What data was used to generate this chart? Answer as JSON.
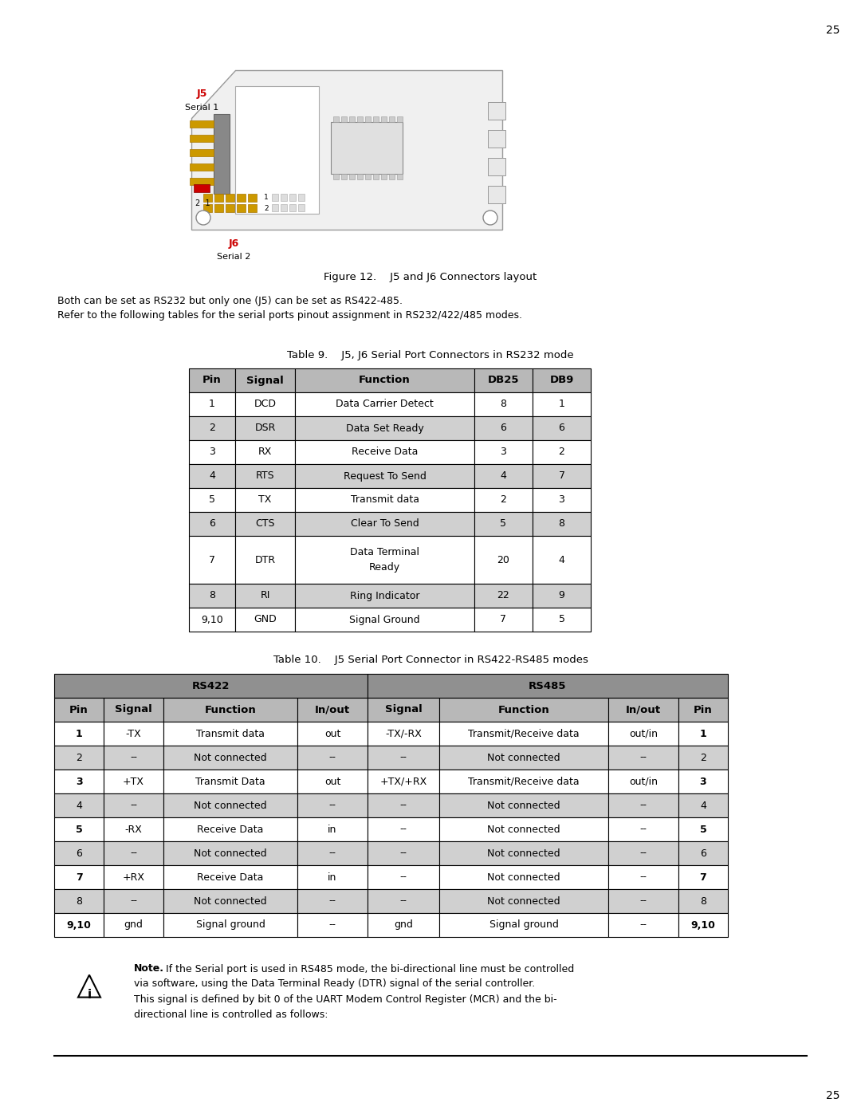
{
  "page_number": "25",
  "figure_caption": "Figure 12.    J5 and J6 Connectors layout",
  "body_text": [
    "Both can be set as RS232 but only one (J5) can be set as RS422-485.",
    "Refer to the following tables for the serial ports pinout assignment in RS232/422/485 modes."
  ],
  "table9_title": "Table 9.    J5, J6 Serial Port Connectors in RS232 mode",
  "table9_headers": [
    "Pin",
    "Signal",
    "Function",
    "DB25",
    "DB9"
  ],
  "table9_rows": [
    [
      "1",
      "DCD",
      "Data Carrier Detect",
      "8",
      "1"
    ],
    [
      "2",
      "DSR",
      "Data Set Ready",
      "6",
      "6"
    ],
    [
      "3",
      "RX",
      "Receive Data",
      "3",
      "2"
    ],
    [
      "4",
      "RTS",
      "Request To Send",
      "4",
      "7"
    ],
    [
      "5",
      "TX",
      "Transmit data",
      "2",
      "3"
    ],
    [
      "6",
      "CTS",
      "Clear To Send",
      "5",
      "8"
    ],
    [
      "7",
      "DTR",
      "Data Terminal\nReady",
      "20",
      "4"
    ],
    [
      "8",
      "RI",
      "Ring Indicator",
      "22",
      "9"
    ],
    [
      "9,10",
      "GND",
      "Signal Ground",
      "7",
      "5"
    ]
  ],
  "table9_shaded_rows": [
    1,
    3,
    5,
    7
  ],
  "table10_title": "Table 10.    J5 Serial Port Connector in RS422-RS485 modes",
  "table10_group_headers": [
    "RS422",
    "RS485"
  ],
  "table10_headers": [
    "Pin",
    "Signal",
    "Function",
    "In/out",
    "Signal",
    "Function",
    "In/out",
    "Pin"
  ],
  "table10_rows": [
    [
      "1",
      "-TX",
      "Transmit data",
      "out",
      "-TX/-RX",
      "Transmit/Receive data",
      "out/in",
      "1"
    ],
    [
      "2",
      "--",
      "Not connected",
      "--",
      "--",
      "Not connected",
      "--",
      "2"
    ],
    [
      "3",
      "+TX",
      "Transmit Data",
      "out",
      "+TX/+RX",
      "Transmit/Receive data",
      "out/in",
      "3"
    ],
    [
      "4",
      "--",
      "Not connected",
      "--",
      "--",
      "Not connected",
      "--",
      "4"
    ],
    [
      "5",
      "-RX",
      "Receive Data",
      "in",
      "--",
      "Not connected",
      "--",
      "5"
    ],
    [
      "6",
      "--",
      "Not connected",
      "--",
      "--",
      "Not connected",
      "--",
      "6"
    ],
    [
      "7",
      "+RX",
      "Receive Data",
      "in",
      "--",
      "Not connected",
      "--",
      "7"
    ],
    [
      "8",
      "--",
      "Not connected",
      "--",
      "--",
      "Not connected",
      "--",
      "8"
    ],
    [
      "9,10",
      "gnd",
      "Signal ground",
      "--",
      "gnd",
      "Signal ground",
      "--",
      "9,10"
    ]
  ],
  "table10_shaded_rows": [
    1,
    3,
    5,
    7
  ],
  "note_text_bold": "Note.",
  "note_text": " If the Serial port is used in RS485 mode, the bi-directional line must be controlled\nvia software, using the Data Terminal Ready (DTR) signal of the serial controller.\nThis signal is defined by bit 0 of the UART Modem Control Register (MCR) and the bi-\ndirectional line is controlled as follows:",
  "bg_color": "#ffffff",
  "header_bg": "#b8b8b8",
  "shaded_bg": "#d0d0d0",
  "white_bg": "#ffffff",
  "border_color": "#000000",
  "group_header_bg": "#909090",
  "j5_label_color": "#cc0000",
  "j6_label_color": "#cc0000"
}
